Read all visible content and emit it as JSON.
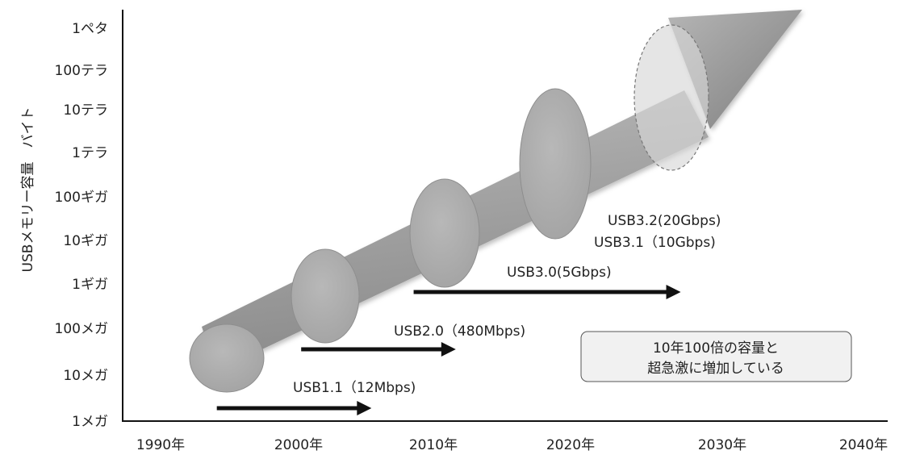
{
  "chart_data": {
    "type": "diagram",
    "y_axis_title": "USBメモリー容量　バイト",
    "y_ticks": [
      "1メガ",
      "10メガ",
      "100メガ",
      "1ギガ",
      "10ギガ",
      "100ギガ",
      "1テラ",
      "10テラ",
      "100テラ",
      "1ペタ"
    ],
    "x_ticks": [
      "1990年",
      "2000年",
      "2010年",
      "2020年",
      "2030年",
      "2040年"
    ],
    "usb_versions": [
      {
        "label": "USB1.1（12Mbps)",
        "start_year": 1994,
        "end_year": 2005
      },
      {
        "label": "USB2.0（480Mbps)",
        "start_year": 2000,
        "end_year": 2011
      },
      {
        "label": "USB3.0(5Gbps)",
        "start_year": 2008,
        "end_year": 2027
      },
      {
        "label": "USB3.1（10Gbps)",
        "start_year": null,
        "end_year": null
      },
      {
        "label": "USB3.2(20Gbps)",
        "start_year": null,
        "end_year": null
      }
    ],
    "note_lines": [
      "10年100倍の容量と",
      "超急激に増加している"
    ]
  }
}
